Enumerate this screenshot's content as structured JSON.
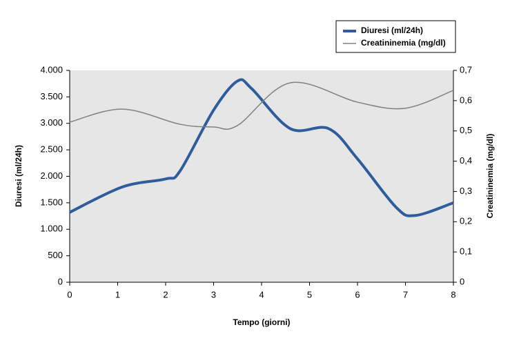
{
  "chart_data": {
    "type": "line",
    "xlabel": "Tempo (giorni)",
    "ylabel": "Diuresi (ml/24h)",
    "y2label": "Creatininemia (mg/dl)",
    "xlim": [
      0,
      8
    ],
    "xticks": [
      0,
      1,
      2,
      3,
      4,
      5,
      6,
      7,
      8
    ],
    "ylim": [
      0,
      4000
    ],
    "yticks": [
      0,
      500,
      {
        "value": 1000,
        "label": "1.000"
      },
      {
        "value": 1500,
        "label": "1.500"
      },
      {
        "value": 2000,
        "label": "2.000"
      },
      {
        "value": 2500,
        "label": "2.500"
      },
      {
        "value": 3000,
        "label": "3.000"
      },
      {
        "value": 3500,
        "label": "3.500"
      },
      {
        "value": 4000,
        "label": "4.000"
      }
    ],
    "y2lim": [
      0,
      0.7
    ],
    "y2ticks": [
      0,
      {
        "value": 0.1,
        "label": "0,1"
      },
      {
        "value": 0.2,
        "label": "0,2"
      },
      {
        "value": 0.3,
        "label": "0,3"
      },
      {
        "value": 0.4,
        "label": "0,4"
      },
      {
        "value": 0.5,
        "label": "0,5"
      },
      {
        "value": 0.6,
        "label": "0,6"
      },
      {
        "value": 0.7,
        "label": "0,7"
      }
    ],
    "series": [
      {
        "name": "Diuresi (ml/24h)",
        "color": "#2f5c9c",
        "width": 4,
        "x": [
          0,
          1.1,
          2,
          2.3,
          3,
          3.5,
          3.8,
          4.6,
          5.4,
          6,
          6.8,
          7.2,
          8
        ],
        "values": [
          1320,
          1800,
          1950,
          2100,
          3250,
          3800,
          3650,
          2900,
          2900,
          2330,
          1420,
          1260,
          1500
        ]
      },
      {
        "name": "Creatininemia (mg/dl)",
        "color": "#808080",
        "width": 1.5,
        "axis": "y2",
        "x": [
          0,
          1.1,
          2.3,
          3,
          3.5,
          4.6,
          6,
          7,
          8
        ],
        "values": [
          0.529,
          0.572,
          0.522,
          0.513,
          0.518,
          0.659,
          0.595,
          0.575,
          0.634
        ]
      }
    ]
  }
}
